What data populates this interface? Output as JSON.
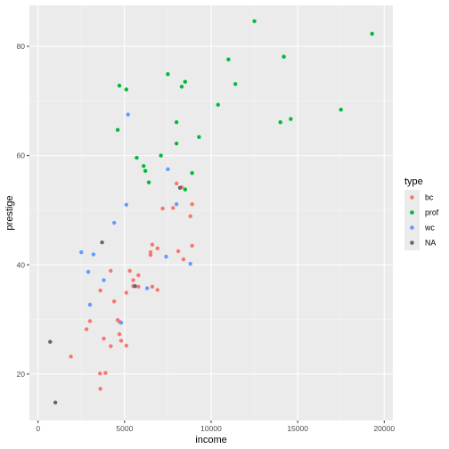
{
  "chart_data": {
    "type": "scatter",
    "xlabel": "income",
    "ylabel": "prestige",
    "xlim": [
      -500,
      20500
    ],
    "ylim": [
      11.5,
      87.5
    ],
    "x_ticks": [
      0,
      5000,
      10000,
      15000,
      20000
    ],
    "x_tick_labels": [
      "0",
      "5000",
      "10000",
      "15000",
      "20000"
    ],
    "y_ticks": [
      20,
      40,
      60,
      80
    ],
    "y_tick_labels": [
      "20",
      "40",
      "60",
      "80"
    ],
    "grid": true,
    "legend": {
      "title": "type",
      "position": "right"
    },
    "series": [
      {
        "name": "bc",
        "color": "#F8766D",
        "points": [
          [
            3600,
            17.3
          ],
          [
            3580,
            20.1
          ],
          [
            3900,
            20.2
          ],
          [
            1900,
            23.2
          ],
          [
            4200,
            25.1
          ],
          [
            5100,
            25.2
          ],
          [
            3800,
            26.5
          ],
          [
            4800,
            26.1
          ],
          [
            2800,
            28.2
          ],
          [
            4700,
            27.3
          ],
          [
            3000,
            29.7
          ],
          [
            4600,
            29.9
          ],
          [
            4700,
            29.6
          ],
          [
            4400,
            33.3
          ],
          [
            3600,
            35.3
          ],
          [
            5100,
            34.9
          ],
          [
            5500,
            36.1
          ],
          [
            5800,
            36.0
          ],
          [
            6600,
            36.0
          ],
          [
            6900,
            35.4
          ],
          [
            5500,
            37.2
          ],
          [
            5800,
            38.1
          ],
          [
            4200,
            38.9
          ],
          [
            5300,
            38.9
          ],
          [
            6500,
            41.8
          ],
          [
            6500,
            42.3
          ],
          [
            8400,
            41.0
          ],
          [
            8100,
            42.5
          ],
          [
            6900,
            43.0
          ],
          [
            6600,
            43.7
          ],
          [
            8900,
            43.5
          ],
          [
            8800,
            48.9
          ],
          [
            7200,
            50.3
          ],
          [
            7800,
            50.4
          ],
          [
            8900,
            51.1
          ],
          [
            8000,
            54.9
          ],
          [
            8300,
            54.2
          ]
        ]
      },
      {
        "name": "prof",
        "color": "#00BA38",
        "points": [
          [
            12500,
            84.6
          ],
          [
            19300,
            82.3
          ],
          [
            14200,
            78.1
          ],
          [
            11000,
            77.6
          ],
          [
            7500,
            74.9
          ],
          [
            8500,
            73.5
          ],
          [
            4700,
            72.8
          ],
          [
            11400,
            73.1
          ],
          [
            5100,
            72.1
          ],
          [
            8300,
            72.6
          ],
          [
            10400,
            69.3
          ],
          [
            17500,
            68.4
          ],
          [
            14600,
            66.7
          ],
          [
            14000,
            66.1
          ],
          [
            8000,
            66.1
          ],
          [
            4600,
            64.7
          ],
          [
            9300,
            63.4
          ],
          [
            8000,
            62.2
          ],
          [
            5700,
            59.6
          ],
          [
            7100,
            60.0
          ],
          [
            6100,
            58.1
          ],
          [
            6200,
            57.2
          ],
          [
            8900,
            56.8
          ],
          [
            6400,
            55.1
          ],
          [
            8500,
            53.8
          ]
        ]
      },
      {
        "name": "wc",
        "color": "#619CFF",
        "points": [
          [
            5200,
            67.5
          ],
          [
            7500,
            57.5
          ],
          [
            8000,
            51.1
          ],
          [
            5100,
            51.0
          ],
          [
            4400,
            47.7
          ],
          [
            2500,
            42.3
          ],
          [
            3200,
            41.9
          ],
          [
            7400,
            41.5
          ],
          [
            2900,
            38.7
          ],
          [
            3800,
            37.2
          ],
          [
            6300,
            35.7
          ],
          [
            3000,
            32.7
          ],
          [
            4800,
            29.4
          ],
          [
            8800,
            40.2
          ]
        ]
      },
      {
        "name": "NA",
        "color": "#666666",
        "points": [
          [
            700,
            25.9
          ],
          [
            1000,
            14.8
          ],
          [
            3700,
            44.1
          ],
          [
            5600,
            36.1
          ],
          [
            8200,
            54.1
          ]
        ]
      }
    ]
  }
}
